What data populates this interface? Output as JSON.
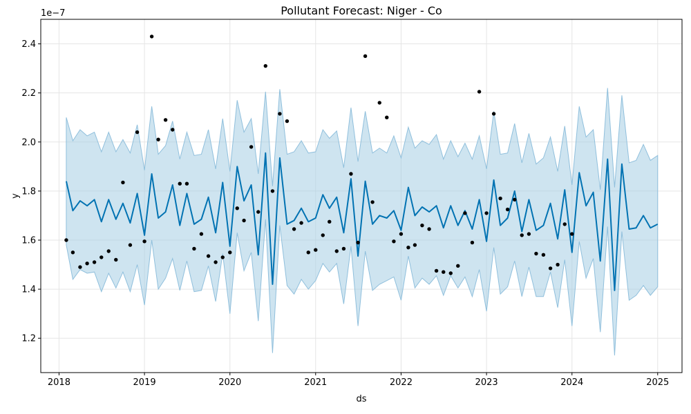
{
  "chart_data": {
    "type": "line",
    "title": "Pollutant Forecast: Niger - Co",
    "xlabel": "ds",
    "ylabel": "y",
    "offset_text": "1e−7",
    "grid": true,
    "x_ticks": [
      "2018",
      "2019",
      "2020",
      "2021",
      "2022",
      "2023",
      "2024",
      "2025"
    ],
    "y_ticks": [
      "1.2",
      "1.4",
      "1.6",
      "1.8",
      "2.0",
      "2.2",
      "2.4"
    ],
    "xlim": [
      "2017-10-15",
      "2025-04-15"
    ],
    "ylim": [
      1.06,
      2.5
    ],
    "colors": {
      "forecast": "#0072b2",
      "interval": "#a6cde4",
      "interval_edge": "#8fbfdc",
      "observed": "#000000",
      "grid": "#e5e5e5"
    },
    "series": [
      {
        "name": "",
        "kind": "forecast",
        "x": [
          "2018-02-01",
          "2018-03-01",
          "2018-04-01",
          "2018-05-01",
          "2018-06-01",
          "2018-07-01",
          "2018-08-01",
          "2018-09-01",
          "2018-10-01",
          "2018-11-01",
          "2018-12-01",
          "2019-01-01",
          "2019-02-01",
          "2019-03-01",
          "2019-04-01",
          "2019-05-01",
          "2019-06-01",
          "2019-07-01",
          "2019-08-01",
          "2019-09-01",
          "2019-10-01",
          "2019-11-01",
          "2019-12-01",
          "2020-01-01",
          "2020-02-01",
          "2020-03-01",
          "2020-04-01",
          "2020-05-01",
          "2020-06-01",
          "2020-07-01",
          "2020-08-01",
          "2020-09-01",
          "2020-10-01",
          "2020-11-01",
          "2020-12-01",
          "2021-01-01",
          "2021-02-01",
          "2021-03-01",
          "2021-04-01",
          "2021-05-01",
          "2021-06-01",
          "2021-07-01",
          "2021-08-01",
          "2021-09-01",
          "2021-10-01",
          "2021-11-01",
          "2021-12-01",
          "2022-01-01",
          "2022-02-01",
          "2022-03-01",
          "2022-04-01",
          "2022-05-01",
          "2022-06-01",
          "2022-07-01",
          "2022-08-01",
          "2022-09-01",
          "2022-10-01",
          "2022-11-01",
          "2022-12-01",
          "2023-01-01",
          "2023-02-01",
          "2023-03-01",
          "2023-04-01",
          "2023-05-01",
          "2023-06-01",
          "2023-07-01",
          "2023-08-01",
          "2023-09-01",
          "2023-10-01",
          "2023-11-01",
          "2023-12-01",
          "2024-01-01",
          "2024-02-01",
          "2024-03-01",
          "2024-04-01",
          "2024-05-01",
          "2024-06-01",
          "2024-07-01",
          "2024-08-01",
          "2024-09-01",
          "2024-10-01",
          "2024-11-01",
          "2024-12-01",
          "2025-01-01"
        ],
        "y": [
          1.84,
          1.72,
          1.76,
          1.74,
          1.765,
          1.675,
          1.765,
          1.685,
          1.75,
          1.67,
          1.79,
          1.62,
          1.87,
          1.69,
          1.715,
          1.825,
          1.66,
          1.79,
          1.665,
          1.685,
          1.775,
          1.63,
          1.835,
          1.575,
          1.9,
          1.76,
          1.825,
          1.54,
          1.955,
          1.42,
          1.935,
          1.665,
          1.68,
          1.73,
          1.675,
          1.69,
          1.785,
          1.73,
          1.775,
          1.63,
          1.85,
          1.535,
          1.84,
          1.665,
          1.7,
          1.69,
          1.72,
          1.64,
          1.815,
          1.7,
          1.735,
          1.715,
          1.74,
          1.65,
          1.74,
          1.66,
          1.72,
          1.645,
          1.765,
          1.595,
          1.845,
          1.66,
          1.69,
          1.8,
          1.635,
          1.765,
          1.64,
          1.66,
          1.75,
          1.605,
          1.805,
          1.55,
          1.875,
          1.74,
          1.795,
          1.515,
          1.93,
          1.395,
          1.91,
          1.645,
          1.65,
          1.7,
          1.65,
          1.665
        ],
        "lower": [
          1.58,
          1.44,
          1.48,
          1.465,
          1.47,
          1.39,
          1.465,
          1.405,
          1.47,
          1.39,
          1.5,
          1.335,
          1.6,
          1.4,
          1.445,
          1.525,
          1.395,
          1.515,
          1.39,
          1.395,
          1.495,
          1.35,
          1.545,
          1.3,
          1.63,
          1.475,
          1.55,
          1.27,
          1.685,
          1.14,
          1.66,
          1.415,
          1.38,
          1.44,
          1.4,
          1.435,
          1.505,
          1.47,
          1.505,
          1.34,
          1.575,
          1.25,
          1.555,
          1.395,
          1.42,
          1.435,
          1.45,
          1.355,
          1.535,
          1.405,
          1.445,
          1.42,
          1.455,
          1.375,
          1.455,
          1.405,
          1.45,
          1.37,
          1.48,
          1.31,
          1.57,
          1.38,
          1.41,
          1.515,
          1.37,
          1.49,
          1.37,
          1.37,
          1.47,
          1.325,
          1.52,
          1.25,
          1.595,
          1.445,
          1.525,
          1.225,
          1.655,
          1.13,
          1.635,
          1.355,
          1.375,
          1.415,
          1.375,
          1.41
        ],
        "upper": [
          2.1,
          2.005,
          2.05,
          2.025,
          2.04,
          1.96,
          2.04,
          1.96,
          2.01,
          1.955,
          2.07,
          1.885,
          2.145,
          1.95,
          1.985,
          2.085,
          1.93,
          2.04,
          1.945,
          1.95,
          2.05,
          1.89,
          2.095,
          1.88,
          2.17,
          2.04,
          2.095,
          1.87,
          2.205,
          1.82,
          2.215,
          1.95,
          1.96,
          2.005,
          1.955,
          1.96,
          2.05,
          2.015,
          2.045,
          1.895,
          2.14,
          1.92,
          2.125,
          1.955,
          1.975,
          1.955,
          2.025,
          1.935,
          2.06,
          1.975,
          2.005,
          1.99,
          2.03,
          1.93,
          2.005,
          1.94,
          1.995,
          1.93,
          2.025,
          1.89,
          2.125,
          1.95,
          1.955,
          2.075,
          1.915,
          2.035,
          1.91,
          1.935,
          2.02,
          1.88,
          2.065,
          1.825,
          2.145,
          2.02,
          2.05,
          1.805,
          2.22,
          1.815,
          2.19,
          1.915,
          1.925,
          1.99,
          1.925,
          1.945
        ]
      },
      {
        "name": "",
        "kind": "observed",
        "x": [
          "2018-02-01",
          "2018-03-01",
          "2018-04-01",
          "2018-05-01",
          "2018-06-01",
          "2018-07-01",
          "2018-08-01",
          "2018-09-01",
          "2018-10-01",
          "2018-11-01",
          "2018-12-01",
          "2019-01-01",
          "2019-02-01",
          "2019-03-01",
          "2019-04-01",
          "2019-05-01",
          "2019-06-01",
          "2019-07-01",
          "2019-08-01",
          "2019-09-01",
          "2019-10-01",
          "2019-11-01",
          "2019-12-01",
          "2020-01-01",
          "2020-02-01",
          "2020-03-01",
          "2020-04-01",
          "2020-05-01",
          "2020-06-01",
          "2020-07-01",
          "2020-08-01",
          "2020-09-01",
          "2020-10-01",
          "2020-11-01",
          "2020-12-01",
          "2021-01-01",
          "2021-02-01",
          "2021-03-01",
          "2021-04-01",
          "2021-05-01",
          "2021-06-01",
          "2021-07-01",
          "2021-08-01",
          "2021-09-01",
          "2021-10-01",
          "2021-11-01",
          "2021-12-01",
          "2022-01-01",
          "2022-02-01",
          "2022-03-01",
          "2022-04-01",
          "2022-05-01",
          "2022-06-01",
          "2022-07-01",
          "2022-08-01",
          "2022-09-01",
          "2022-10-01",
          "2022-11-01",
          "2022-12-01",
          "2023-01-01",
          "2023-02-01",
          "2023-03-01",
          "2023-04-01",
          "2023-05-01",
          "2023-06-01",
          "2023-07-01",
          "2023-08-01",
          "2023-09-01",
          "2023-10-01",
          "2023-11-01",
          "2023-12-01",
          "2024-01-01"
        ],
        "y": [
          1.6,
          1.55,
          1.49,
          1.505,
          1.51,
          1.53,
          1.555,
          1.52,
          1.835,
          1.58,
          2.04,
          1.595,
          2.43,
          2.01,
          2.09,
          2.05,
          1.83,
          1.83,
          1.565,
          1.625,
          1.535,
          1.51,
          1.53,
          1.55,
          1.73,
          1.68,
          1.98,
          1.715,
          2.31,
          1.8,
          2.115,
          2.085,
          1.645,
          1.67,
          1.55,
          1.56,
          1.62,
          1.675,
          1.555,
          1.565,
          1.87,
          1.59,
          2.35,
          1.755,
          2.16,
          2.1,
          1.595,
          1.625,
          1.57,
          1.58,
          1.66,
          1.645,
          1.475,
          1.47,
          1.465,
          1.495,
          1.71,
          1.59,
          2.205,
          1.71,
          2.115,
          1.77,
          1.725,
          1.765,
          1.62,
          1.625,
          1.545,
          1.54,
          1.485,
          1.5,
          1.665,
          1.625
        ]
      }
    ]
  }
}
